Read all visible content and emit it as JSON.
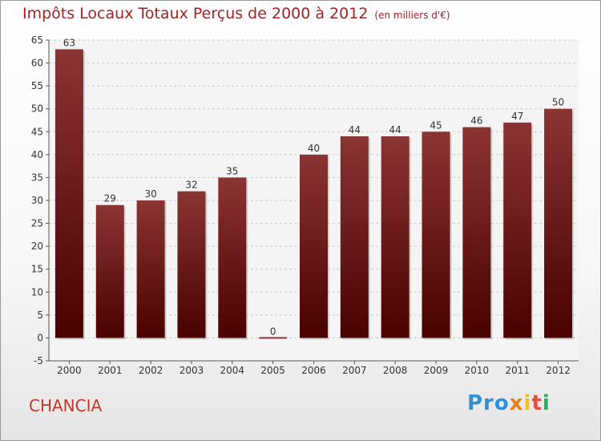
{
  "title": "Impôts Locaux Totaux Perçus de 2000 à 2012",
  "title_unit": "(en milliers d'€)",
  "town": "CHANCIA",
  "logo": [
    "Pro",
    "x",
    "i",
    "t",
    "i"
  ],
  "colors": {
    "bar_top": "#8b3434",
    "bar_bottom": "#4a0000",
    "title": "#a02424"
  },
  "chart_data": {
    "type": "bar",
    "categories": [
      "2000",
      "2001",
      "2002",
      "2003",
      "2004",
      "2005",
      "2006",
      "2007",
      "2008",
      "2009",
      "2010",
      "2011",
      "2012"
    ],
    "values": [
      63,
      29,
      30,
      32,
      35,
      0,
      40,
      44,
      44,
      45,
      46,
      47,
      50
    ],
    "ylim": [
      -5,
      65
    ],
    "yticks": [
      -5,
      0,
      5,
      10,
      15,
      20,
      25,
      30,
      35,
      40,
      45,
      50,
      55,
      60,
      65
    ],
    "grid": true
  }
}
